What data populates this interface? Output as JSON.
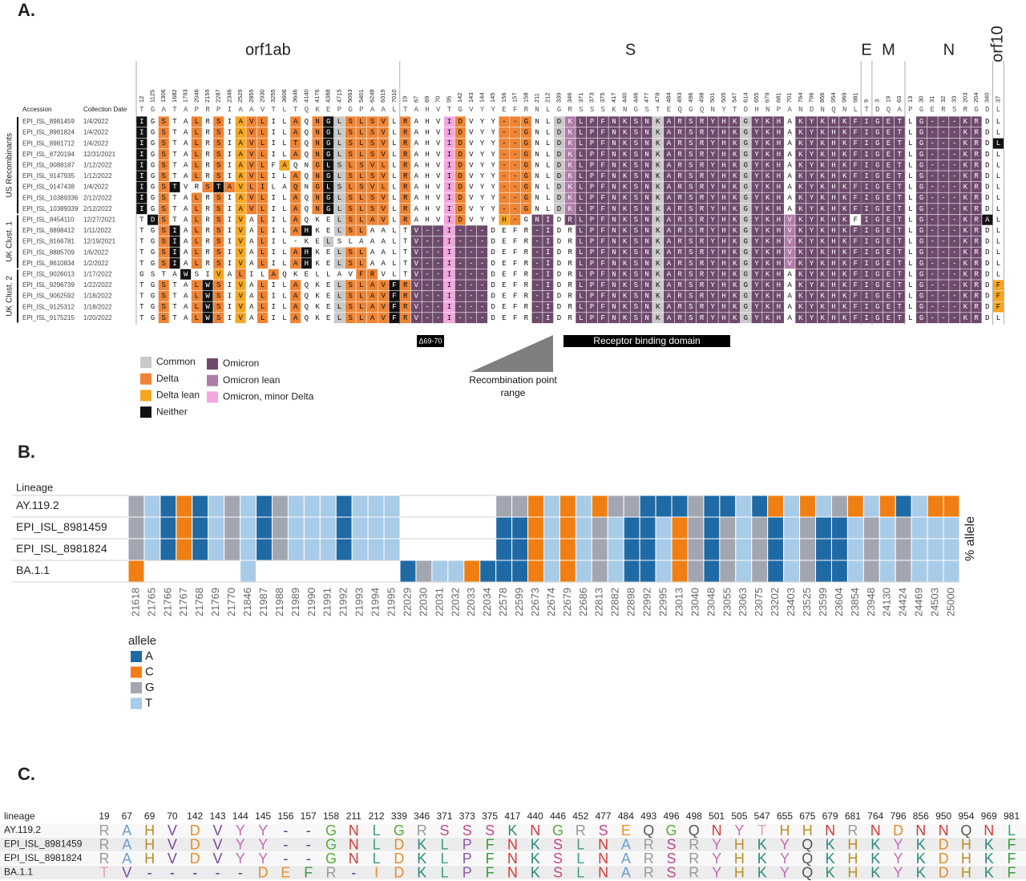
{
  "panel_a": {
    "label": "A.",
    "header_accession": "Accession",
    "header_date": "Collection Date",
    "genes": [
      {
        "name": "orf1ab",
        "positions": [
          12,
          1125,
          1306,
          1682,
          1793,
          2046,
          2159,
          2287,
          2346,
          2529,
          2855,
          2930,
          3255,
          3606,
          3646,
          4140,
          4176,
          4388,
          4715,
          5063,
          5401,
          6248,
          6319,
          7010
        ],
        "reference": "TGATAPRPIAAVTLTQKEPGPAAL"
      },
      {
        "name": "S",
        "positions": [
          19,
          67,
          69,
          70,
          95,
          142,
          143,
          144,
          145,
          156,
          157,
          158,
          211,
          212,
          339,
          346,
          371,
          373,
          375,
          417,
          440,
          446,
          477,
          478,
          484,
          493,
          496,
          498,
          501,
          505,
          547,
          614,
          655,
          679,
          681,
          701,
          764,
          796,
          856,
          954,
          969,
          981
        ],
        "reference": "TAHVTGVYYEFRNLGRSSSKNGSTEQGQNYTDHNPANDNQNL"
      },
      {
        "name": "E",
        "positions": [
          9
        ],
        "reference": "T"
      },
      {
        "name": "M",
        "positions": [
          3,
          19,
          63
        ],
        "reference": "DQA"
      },
      {
        "name": "N",
        "positions": [
          13,
          30,
          31,
          32,
          33,
          203,
          204,
          340
        ],
        "reference": "PGERSRGD"
      },
      {
        "name": "orf10",
        "positions": [
          37
        ],
        "reference": "L"
      }
    ],
    "groups": [
      {
        "label": "US Recombinants",
        "rows": [
          {
            "accession": "EPI_ISL_8981459",
            "date": "1/4/2022",
            "residues": [
              "IGSTALRSIAVLILAQNGLSLSVL",
              "RAHVIDVYY--GNLDKLPFNKSNKARSRYHKGYKHAKYKHKF",
              "I",
              "GET",
              "LG---KRD",
              "L"
            ],
            "classes": [
              "3.1..1.1.211..1.1301111.",
              "1...61...111..054444444044444440444.444444",
              "4",
              "444",
              ".444444.",
              "."
            ]
          },
          {
            "accession": "EPI_ISL_8981824",
            "date": "1/4/2022",
            "residues": [
              "IGSTALRSIAVLILAQNGLSLSVL",
              "RAHVIDVYY--GNLDKLPFNKSNKARSRYHKGYKHAKYKHKF",
              "I",
              "GET",
              "LG---KRD",
              "L"
            ],
            "classes": [
              "3.1..1.1.211..1.1301111.",
              "1...61...111..054444444044444440444.444444",
              "4",
              "444",
              ".444444.",
              "."
            ]
          },
          {
            "accession": "EPI_ISL_8981712",
            "date": "1/4/2022",
            "residues": [
              "IGSTALRSIAVLILTQNGLSLSVL",
              "RAHVIDVYY--GNLDKLPFNKSNKARSRYHKGYKHAKYKHKF",
              "I",
              "GET",
              "LG---KRD",
              "L"
            ],
            "classes": [
              "3.1..1.1.211..1.1301111.",
              "1...61...111..054444444044444440444.444444",
              "4",
              "444",
              ".444444.",
              "3"
            ]
          },
          {
            "accession": "EPI_ISL_8720194",
            "date": "12/31/2021",
            "residues": [
              "IGSTALRSIAVLILAQNGLSLSVL",
              "RAHVIDVYY--GNLDKLPFNKSNKARSRYHKGYKHAKYKHKF",
              "I",
              "GET",
              "LG---KRD",
              "L"
            ],
            "classes": [
              "3.1..1.1.211..1.1301111.",
              "1...61...111..054444444044444440444.444444",
              "4",
              "444",
              ".444444.",
              "."
            ]
          },
          {
            "accession": "EPI_ISL_9088187",
            "date": "1/12/2022",
            "residues": [
              "IGSTALRSIAVLFAQNGLSLSVLL",
              "RAHVIDVYY--GNLDKLPFNKSNKARSRYHKGYKHAKYKHKF",
              "I",
              "GET",
              "LG---KRD",
              "L"
            ],
            "classes": [
              "3.1..1.1.211.2..1301111.",
              "1...61...111..054444444044444440444.444444",
              "4",
              "444",
              ".444444.",
              "."
            ]
          },
          {
            "accession": "EPI_ISL_9147935",
            "date": "1/12/2022",
            "residues": [
              "IGSTALRSIAVLILAQNGLSLSVL",
              "RAHVIDVYY--GNLDKLPFNKSNKARSRYHKGYKHAKYKHKF",
              "I",
              "GET",
              "LG---KRD",
              "L"
            ],
            "classes": [
              "3.1..1.1.211..1.1301111.",
              "1...61...111..054444444044444440444.444444",
              "4",
              "444",
              ".444444.",
              "."
            ]
          },
          {
            "accession": "EPI_ISL_9147438",
            "date": "1/4/2022",
            "residues": [
              "IGSTVRSTAVLILAQNGLSLSVLL",
              "RAHVIDVYY--GNLDKLPFNKSNKARSRYHKGYKHAKYKHKF",
              "I",
              "GET",
              "LG---KRD",
              "L"
            ],
            "classes": [
              "3.13..131211..1.1301111.",
              "1...61...111..054444444044444440444.444444",
              "4",
              "444",
              ".444444.",
              "."
            ]
          },
          {
            "accession": "EPI_ISL_10389336",
            "date": "2/12/2022",
            "residues": [
              "IGSTALRSIAVLILAQNGLSLSVL",
              "RAHVIDVYY--GNLDKLPFNKSNKARSRYHKGYKHAKYKHKF",
              "I",
              "GET",
              "LG---KRD",
              "L"
            ],
            "classes": [
              "3.1..1.1.211..1.1301111.",
              "1...61...111..054444444044444440444.444444",
              "4",
              "444",
              ".444444.",
              "."
            ]
          },
          {
            "accession": "EPI_ISL_10389339",
            "date": "2/12/2022",
            "residues": [
              "IGSTALRSIAVLILAQNGLSLSVL",
              "RAHVIDVYY--GNLDKLPFNKSNKARSRYHKGYKHAKYKHKF",
              "I",
              "GET",
              "LG---KRD",
              "L"
            ],
            "classes": [
              "3.1..1.1.211..1.1301111.",
              "1...61...111..054444444044444440444.444444",
              "4",
              "444",
              ".444444.",
              "."
            ]
          }
        ]
      },
      {
        "label": "UK Clust. 1",
        "rows": [
          {
            "accession": "EPI_ISL_8454110",
            "date": "12/27/2021",
            "residues": [
              "TDSTALRSIVALILAQKELSLAVL",
              "RAHVIDVYYH-GNIDRLPFNKSNKARSRYHKGYKHVKYKHKF",
              "I",
              "GET",
              "LG---KRA",
              "L"
            ],
            "classes": [
              ".31..1.1.2.1..1...01111.",
              "1...61...21.44.44444444044444440444544444",
              "4",
              "444",
              ".4444443",
              "."
            ]
          },
          {
            "accession": "EPI_ISL_8898412",
            "date": "1/11/2022",
            "residues": [
              "TGSIALRSIVALILAHKELSLAAL",
              "TV--I---DEFR-IDRLPFNKSNKARSRYHKGYKHVKYKHKF",
              "I",
              "GET",
              "LG---KRD",
              "L"
            ],
            "classes": [
              "..13.1.1.2.1..13..011...",
              ".4446444....44..44444440444444404445444444",
              "4",
              "444",
              ".444444.",
              "."
            ]
          },
          {
            "accession": "EPI_ISL_8166781",
            "date": "12/19/2021",
            "residues": [
              "TGSIALRSIVALIL-KELSLAAAL",
              "TV--I---DEFR-IDRLPFNKSNKARSRYHKGYKHVKYKHKF",
              "I",
              "GET",
              "LG---KRD",
              "L"
            ],
            "classes": [
              "..13.1.1.2.1.....0.....",
              ".4446444....44..44444440444444404445444444",
              "4",
              "444",
              ".444444.",
              "."
            ]
          },
          {
            "accession": "EPI_ISL_8885709",
            "date": "1/6/2022",
            "residues": [
              "TGSIALRSIVALILAHKELSLAAL",
              "TV--I---DEFR-IDRLPFNKSNKARSRYHKGYKHVKYKHKF",
              "I",
              "GET",
              "LG---KRD",
              "L"
            ],
            "classes": [
              "..13.1.1.2.1..13..011...",
              ".4446444....44..44444440444444404445444444",
              "4",
              "444",
              ".444444.",
              "."
            ]
          },
          {
            "accession": "EPI_ISL_8610834",
            "date": "1/2/2022",
            "residues": [
              "TGSIALRSIVALILAHKELSLAAL",
              "TV--I---DEFR-IDRLPFNKSNKARSRYHKGYKHVKYKHKF",
              "I",
              "GET",
              "LG---KRD",
              "L"
            ],
            "classes": [
              "..13.1.1.2.1..13..011...",
              ".4446444....44..44444440444444404445444444",
              "4",
              "444",
              ".444444.",
              "."
            ]
          }
        ]
      },
      {
        "label": "UK Clust. 2",
        "rows": [
          {
            "accession": "EPI_ISL_9026013",
            "date": "1/17/2022",
            "residues": [
              "GSTAWSIVALILAQKELLAVFRVL",
              "TV--I---DEFR-IDRLPFNKSNKARSRYHKGYKHAKYKHKF",
              "I",
              "GET",
              "LG---KRD",
              "L"
            ],
            "classes": [
              "....3..2.1..1.......11..",
              ".4446444....44..4444444044444440444.444444",
              "4",
              "444",
              ".444444.",
              "."
            ]
          },
          {
            "accession": "EPI_ISL_9296739",
            "date": "1/22/2022",
            "residues": [
              "TGSTALWSIVALILAQKELSLAVF",
              "RV--I---DEFR-IDRLPFNKSNKARSRYHKGYKHAKYKHKF",
              "I",
              "GET",
              "LG---KRD",
              "F"
            ],
            "classes": [
              "..1..131.2.1..1...011113",
              "14446444....44..4444444044444440444.444444",
              "4",
              "444",
              ".444444.",
              "2"
            ]
          },
          {
            "accession": "EPI_ISL_9062592",
            "date": "1/18/2022",
            "residues": [
              "TGSTALWSIVALILAQKELSLAVF",
              "RV--I---DEFR-IDRLPFNKSNKARSRYHKGYKHAKYKHKF",
              "I",
              "GET",
              "LG---KRD",
              "F"
            ],
            "classes": [
              "..1..131.2.1..1...011113",
              "14446444....44..4444444044444440444.444444",
              "4",
              "444",
              ".444444.",
              "2"
            ]
          },
          {
            "accession": "EPI_ISL_9125312",
            "date": "1/18/2022",
            "residues": [
              "TGSTALWSIVALILAQKELSLAVF",
              "RV--I---DEFR-IDRLPFNKSNKARSRYHKGYKHAKYKHKF",
              "I",
              "GET",
              "LG---KRD",
              "F"
            ],
            "classes": [
              "..1..131.2.1..1...011113",
              "14446444....44..4444444044444440444.444444",
              "4",
              "444",
              ".444444.",
              "2"
            ]
          },
          {
            "accession": "EPI_ISL_9175215",
            "date": "1/20/2022",
            "residues": [
              "TGSTALWSIVALILAQKELSLAVF",
              "RV--I---DEFR-IDRLPFNKSNKARSRYHKGYKHAKYKHKF",
              "I",
              "GET",
              "LG---KRD",
              "L"
            ],
            "classes": [
              "..1..131.2.1..1...011113",
              "14446444....44..4444444044444440444.444444",
              "4",
              "444",
              ".444444.",
              "."
            ]
          }
        ]
      }
    ],
    "legend": [
      {
        "label": "Common",
        "color": "#c9c9c9"
      },
      {
        "label": "Delta",
        "color": "#ee8434"
      },
      {
        "label": "Delta lean",
        "color": "#f5a623"
      },
      {
        "label": "Neither",
        "color": "#111111"
      },
      {
        "label": "Omicron",
        "color": "#6d4a6b"
      },
      {
        "label": "Omicron lean",
        "color": "#b07ca9"
      },
      {
        "label": "Omicron, minor Delta",
        "color": "#f4a6e0"
      }
    ],
    "deletion_label": "Δ69-70",
    "rbd_label": "Receptor binding domain",
    "recombination_label": "Recombination point range"
  },
  "panel_b": {
    "label": "B.",
    "lineage_header": "Lineage",
    "y_label": "% allele",
    "legend_title": "allele",
    "alleles": [
      {
        "label": "A",
        "color": "#1f6aa5"
      },
      {
        "label": "C",
        "color": "#f07f13"
      },
      {
        "label": "G",
        "color": "#a2a6b0"
      },
      {
        "label": "T",
        "color": "#a8cbe8"
      }
    ],
    "positions": [
      21618,
      21765,
      21766,
      21767,
      21768,
      21769,
      21770,
      21846,
      21987,
      21988,
      21989,
      21990,
      21991,
      21992,
      21993,
      21994,
      21995,
      22029,
      22030,
      22031,
      22032,
      22033,
      22034,
      22578,
      22599,
      22673,
      22674,
      22679,
      22686,
      22813,
      22882,
      22898,
      22992,
      22995,
      23013,
      23040,
      23048,
      23055,
      23063,
      23075,
      23202,
      23403,
      23525,
      23599,
      23604,
      23854,
      23948,
      24130,
      24424,
      24469,
      24503,
      25000
    ],
    "rows": [
      {
        "name": "AY.119.2",
        "alleles": "GTACATGTAGTTTATTT      GGCTCTCGGAAAGAATACTCTGCTCATCC"
      },
      {
        "name": "EPI_ISL_8981459",
        "alleles": "GTACATGTAGTTTATTT      AACTCTGTAATCGAGTGATGAATGTGTTT"
      },
      {
        "name": "EPI_ISL_8981824",
        "alleles": "GTACATGTAGTTTATTT      AACTCTGTAATCGAGTGATGAATGTGTTT"
      },
      {
        "name": "BA.1.1",
        "alleles": "C      T         AGTTCAAACTCTGTAATCGAGTGATGAATGTGTTT"
      }
    ]
  },
  "panel_c": {
    "label": "C.",
    "lineage_header": "lineage",
    "positions": [
      19,
      67,
      69,
      70,
      142,
      143,
      144,
      145,
      156,
      157,
      158,
      211,
      212,
      339,
      346,
      371,
      373,
      375,
      417,
      440,
      446,
      452,
      477,
      484,
      493,
      496,
      498,
      501,
      505,
      547,
      655,
      675,
      679,
      681,
      764,
      796,
      856,
      950,
      954,
      969,
      981
    ],
    "rows": [
      {
        "name": "AY.119.2",
        "residues": "RAHVDVYY--GNLGRSSSKNGRSEQGQNYTHHNRNDNNQNL"
      },
      {
        "name": "EPI_ISL_8981459",
        "residues": "RAHVDVYY--GNLDKLPFNKSLNARSRYHKYQKHKYKDHKF"
      },
      {
        "name": "EPI_ISL_8981824",
        "residues": "RAHVDVYY--GNLDKLPFNKSLNARSRYHKYQKHKYKDHKF"
      },
      {
        "name": "BA.1.1",
        "residues": "TV-----DEFR-IDKLPFNKSLNARSRYHKYQKHKYKDHKF"
      }
    ],
    "letter_colors": {
      "R": "#9a9a9a",
      "A": "#6a9fd0",
      "H": "#b8902a",
      "V": "#7b4a9a",
      "D": "#e0902a",
      "Y": "#c86ab8",
      "-": "#2a4f8a",
      "G": "#5aaa3a",
      "N": "#d23a3a",
      "L": "#3aa08a",
      "K": "#2a8a7a",
      "S": "#c24a8a",
      "P": "#8a5aa8",
      "F": "#3a9a3a",
      "E": "#e8902a",
      "Q": "#555555",
      "T": "#e8a0c0",
      "I": "#e89030"
    }
  }
}
